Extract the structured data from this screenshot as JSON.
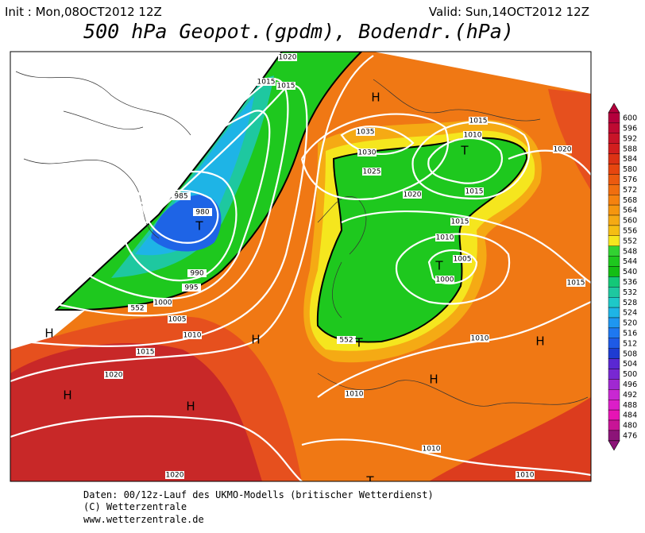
{
  "header": {
    "init": "Init : Mon,08OCT2012 12Z",
    "valid": "Valid: Sun,14OCT2012 12Z",
    "title": "500 hPa Geopot.(gpdm), Bodendr.(hPa)"
  },
  "colorbar": {
    "levels": [
      600,
      596,
      592,
      588,
      584,
      580,
      576,
      572,
      568,
      564,
      560,
      556,
      552,
      548,
      544,
      540,
      536,
      532,
      528,
      524,
      520,
      516,
      512,
      508,
      504,
      500,
      496,
      492,
      488,
      484,
      480,
      476
    ],
    "colors": [
      "#b4003c",
      "#be0a32",
      "#c81428",
      "#d21e1e",
      "#dc3214",
      "#e6460f",
      "#eb5a0f",
      "#f06e0f",
      "#f5820f",
      "#f5960f",
      "#f5aa14",
      "#f5be14",
      "#f5e61e",
      "#32d232",
      "#1ec81e",
      "#14be14",
      "#14c878",
      "#1ec8a0",
      "#1ec8c8",
      "#1eb4e6",
      "#1e96f0",
      "#1e78f0",
      "#1e5ae6",
      "#1e3cd2",
      "#5a28d2",
      "#7828d2",
      "#a028d2",
      "#c828d2",
      "#dc1ec8",
      "#e614b4",
      "#c81496",
      "#8c1478"
    ]
  },
  "map": {
    "isobar_labels": [
      1020,
      1015,
      1015,
      985,
      980,
      990,
      995,
      1000,
      1005,
      1010,
      1015,
      1020,
      1035,
      1030,
      1025,
      1020,
      1010,
      1015,
      1015,
      1015,
      1010,
      1005,
      1000,
      1020,
      1015,
      1010,
      1010,
      1010,
      1020,
      1010,
      552,
      552
    ],
    "markers": [
      "H",
      "T",
      "T",
      "T",
      "H",
      "H",
      "H",
      "H",
      "T",
      "H",
      "H",
      "T"
    ]
  },
  "footer": {
    "line1": "Daten: 00/12z-Lauf des UKMO-Modells (britischer Wetterdienst)",
    "line2": "(C) Wetterzentrale",
    "line3": "www.wetterzentrale.de"
  }
}
